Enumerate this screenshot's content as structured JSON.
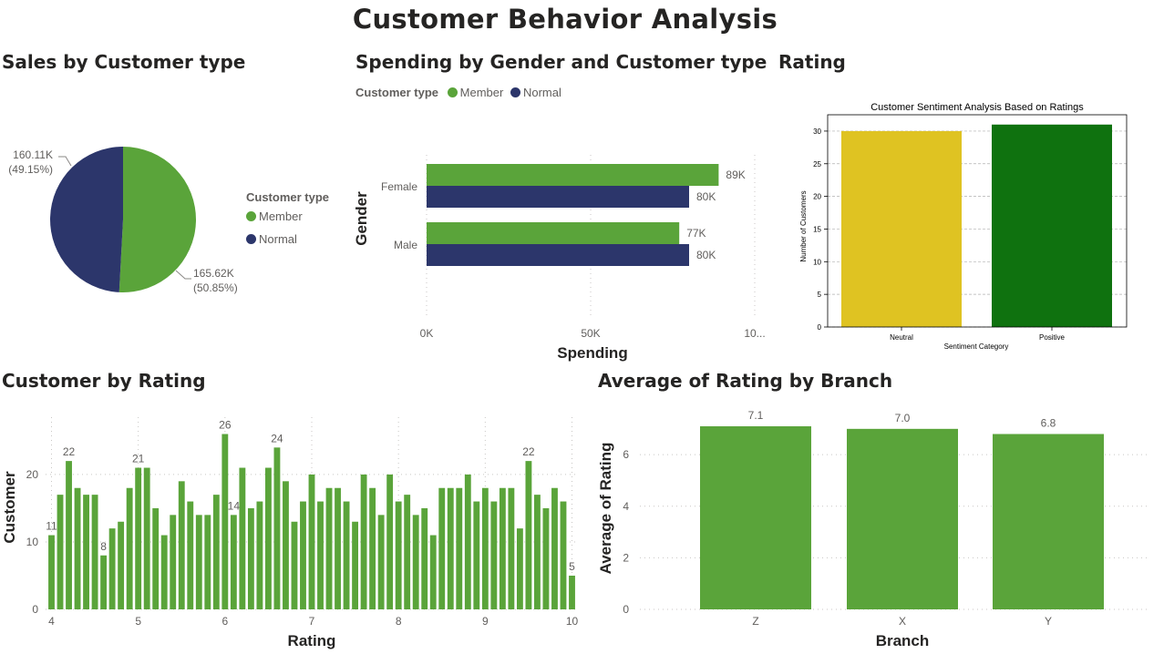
{
  "page": {
    "title": "Customer Behavior Analysis"
  },
  "colors": {
    "member": "#5aa43a",
    "normal": "#2c366b",
    "neutral": "#dfc322",
    "positive": "#0f720f"
  },
  "panels": {
    "sales": {
      "title": "Sales by Customer type"
    },
    "spending": {
      "title": "Spending by Gender and Customer type"
    },
    "rating": {
      "title": "Rating"
    },
    "customer_rating": {
      "title": "Customer by Rating"
    },
    "branch": {
      "title": "Average of Rating by Branch"
    }
  },
  "chart_data": [
    {
      "id": "sales",
      "type": "pie",
      "legend_title": "Customer type",
      "slices": [
        {
          "name": "Member",
          "value": 165.62,
          "label": "165.62K",
          "pct": "(50.85%)"
        },
        {
          "name": "Normal",
          "value": 160.11,
          "label": "160.11K",
          "pct": "(49.15%)"
        }
      ]
    },
    {
      "id": "spending",
      "type": "bar",
      "orientation": "horizontal",
      "legend_title": "Customer type",
      "categories": [
        "Female",
        "Male"
      ],
      "series": [
        {
          "name": "Member",
          "values": [
            89,
            77
          ],
          "labels": [
            "89K",
            "77K"
          ]
        },
        {
          "name": "Normal",
          "values": [
            80,
            80
          ],
          "labels": [
            "80K",
            "80K"
          ]
        }
      ],
      "xlabel": "Spending",
      "ylabel": "Gender",
      "xticks": [
        "0K",
        "50K",
        "10..."
      ],
      "xlim": [
        0,
        100
      ]
    },
    {
      "id": "sentiment",
      "type": "bar",
      "title": "Customer Sentiment Analysis Based on Ratings",
      "categories": [
        "Neutral",
        "Positive"
      ],
      "values": [
        30,
        31
      ],
      "xlabel": "Sentiment Category",
      "ylabel": "Number of Customers",
      "ylim": [
        0,
        32.5
      ],
      "yticks": [
        0,
        5,
        10,
        15,
        20,
        25,
        30
      ],
      "grid": true
    },
    {
      "id": "customer_rating",
      "type": "bar",
      "x": [
        4.0,
        4.1,
        4.2,
        4.3,
        4.4,
        4.5,
        4.6,
        4.7,
        4.8,
        4.9,
        5.0,
        5.1,
        5.2,
        5.3,
        5.4,
        5.5,
        5.6,
        5.7,
        5.8,
        5.9,
        6.0,
        6.1,
        6.2,
        6.3,
        6.4,
        6.5,
        6.6,
        6.7,
        6.8,
        6.9,
        7.0,
        7.1,
        7.2,
        7.3,
        7.4,
        7.5,
        7.6,
        7.7,
        7.8,
        7.9,
        8.0,
        8.1,
        8.2,
        8.3,
        8.4,
        8.5,
        8.6,
        8.7,
        8.8,
        8.9,
        9.0,
        9.1,
        9.2,
        9.3,
        9.4,
        9.5,
        9.6,
        9.7,
        9.8,
        9.9,
        10.0
      ],
      "values": [
        11,
        17,
        22,
        18,
        17,
        17,
        8,
        12,
        13,
        18,
        21,
        21,
        15,
        11,
        14,
        19,
        16,
        14,
        14,
        17,
        26,
        14,
        21,
        15,
        16,
        21,
        24,
        19,
        13,
        16,
        20,
        16,
        18,
        18,
        16,
        13,
        20,
        18,
        14,
        20,
        16,
        17,
        14,
        15,
        11,
        18,
        18,
        18,
        20,
        16,
        18,
        16,
        18,
        18,
        12,
        22,
        17,
        15,
        18,
        16,
        5
      ],
      "annotated": {
        "0": "11",
        "2": "22",
        "6": "8",
        "10": "21",
        "20": "26",
        "21": "14",
        "26": "24",
        "55": "22",
        "60": "5"
      },
      "xlabel": "Rating",
      "ylabel": "Customer",
      "xticks": [
        4,
        5,
        6,
        7,
        8,
        9,
        10
      ],
      "yticks": [
        0,
        10,
        20
      ],
      "ylim": [
        0,
        28.5
      ]
    },
    {
      "id": "branch",
      "type": "bar",
      "categories": [
        "Z",
        "X",
        "Y"
      ],
      "values": [
        7.1,
        7.0,
        6.8
      ],
      "labels": [
        "7.1",
        "7.0",
        "6.8"
      ],
      "xlabel": "Branch",
      "ylabel": "Average of Rating",
      "yticks": [
        0,
        2,
        4,
        6
      ],
      "ylim": [
        0,
        7.1
      ]
    }
  ]
}
